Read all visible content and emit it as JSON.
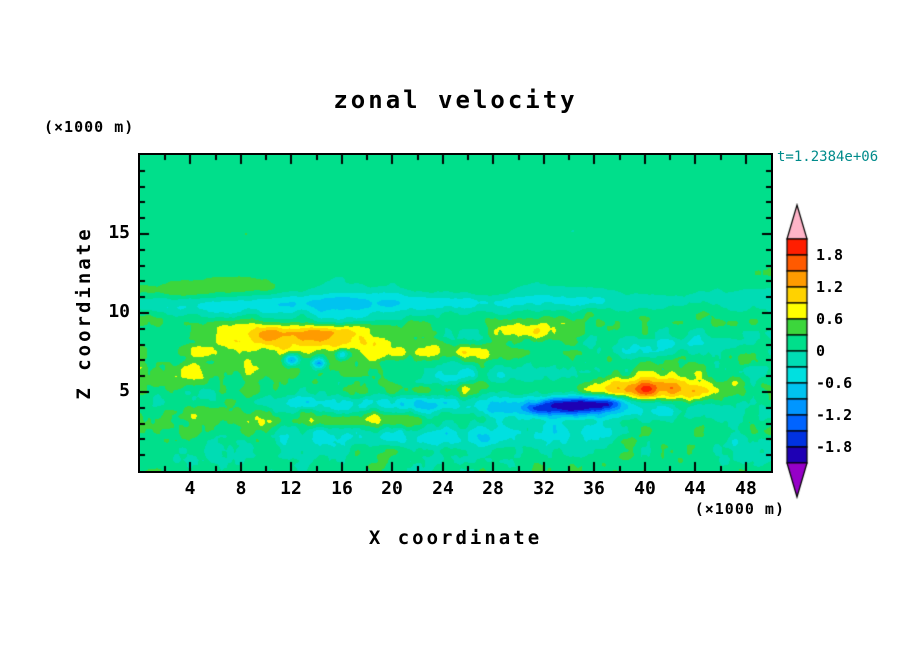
{
  "chart_data": {
    "type": "heatmap",
    "title": "zonal velocity",
    "time_annotation": "t=1.2384e+06",
    "time_annotation_color": "#008b8b",
    "xlabel": "X coordinate",
    "ylabel": "Z coordinate",
    "x_unit": "(×1000 m)",
    "y_unit": "(×1000 m)",
    "xlim": [
      0,
      50
    ],
    "ylim": [
      0,
      20
    ],
    "x_major_ticks": [
      4,
      8,
      12,
      16,
      20,
      24,
      28,
      32,
      36,
      40,
      44,
      48
    ],
    "x_minor_step": 2,
    "y_major_ticks": [
      5,
      10,
      15
    ],
    "y_minor_step": 1,
    "contour_interval": 0.3,
    "colorbar": {
      "max": 2.1,
      "min": -2.1,
      "labels": [
        "1.8",
        "1.2",
        "0.6",
        "0",
        "-0.6",
        "-1.2",
        "-1.8"
      ],
      "label_values": [
        1.8,
        1.2,
        0.6,
        0,
        -0.6,
        -1.2,
        -1.8
      ],
      "colors_top_to_bottom": [
        "#ff1e00",
        "#ff5a00",
        "#ff9b00",
        "#ffd200",
        "#ffff00",
        "#3cd63c",
        "#00df8b",
        "#00dcb4",
        "#00e0e0",
        "#00c3f0",
        "#0096ff",
        "#0064ff",
        "#0032e1",
        "#1e00b4"
      ],
      "over_arrow_color": "#ffb4c8",
      "under_arrow_color": "#9600c8"
    },
    "field_model": {
      "description": "Filled-contour zonal velocity field: background near 0-0.3 (spring green); turbulent layer below z=9.5 with yellow/orange positive streaks and cyan/blue negative streaks; cyan shear band near z=10.5 strongest at left; strong positive orange streak near x=40,z=5 above dark navy negative cores near z=4.2; small deep-blue specks near x=12-16,z=7; calm mottled green above z=12.",
      "base": 0.15,
      "seed": 7,
      "clamp": 2.05,
      "blobs": [
        [
          10,
          10.55,
          11,
          0.55,
          -0.75
        ],
        [
          32,
          10.7,
          14,
          0.45,
          -0.32
        ],
        [
          12,
          8.7,
          6,
          0.8,
          0.8
        ],
        [
          10.5,
          8.55,
          2.5,
          0.45,
          0.45
        ],
        [
          40,
          5.15,
          4.5,
          0.65,
          1.15
        ],
        [
          40.5,
          5.1,
          1.5,
          0.3,
          0.4
        ],
        [
          36,
          4.2,
          5,
          0.55,
          -0.85
        ],
        [
          34.3,
          4.15,
          1.4,
          0.4,
          -1.35
        ],
        [
          36.8,
          4.3,
          0.9,
          0.3,
          -1.05
        ],
        [
          31.5,
          3.9,
          0.8,
          0.3,
          -0.85
        ],
        [
          12,
          7.05,
          0.45,
          0.3,
          -1.5
        ],
        [
          14.2,
          6.8,
          0.4,
          0.28,
          -1.3
        ],
        [
          16,
          7.35,
          0.4,
          0.28,
          -1.15
        ],
        [
          19,
          4.35,
          9,
          0.5,
          -0.7
        ],
        [
          25,
          2.25,
          13,
          0.5,
          -0.42
        ],
        [
          10,
          6.3,
          5,
          0.38,
          0.5
        ],
        [
          17,
          3.15,
          6,
          0.35,
          0.55
        ],
        [
          24,
          5.05,
          5.5,
          0.4,
          0.5
        ],
        [
          24,
          7.5,
          4,
          0.35,
          0.45
        ],
        [
          30,
          8.8,
          2.5,
          0.4,
          0.5
        ],
        [
          6,
          11.4,
          4,
          0.5,
          0.4
        ],
        [
          43,
          7.8,
          6,
          0.5,
          -0.38
        ],
        [
          29,
          6.1,
          4,
          0.3,
          -0.4
        ],
        [
          16,
          9.6,
          4,
          0.35,
          -0.45
        ]
      ],
      "noise_streak_octaves": [
        [
          0.12,
          0.8,
          1
        ],
        [
          0.25,
          1.6,
          0.5
        ],
        [
          0.5,
          3.2,
          0.25
        ]
      ],
      "noise_speckle_octaves": [
        [
          0.7,
          0.8,
          1
        ],
        [
          1.4,
          1.6,
          0.55
        ],
        [
          2.8,
          3.2,
          0.3
        ]
      ],
      "streak_amp_profile": [
        [
          0,
          0.3
        ],
        [
          2.8,
          0.38
        ],
        [
          6,
          0.5
        ],
        [
          9,
          0.45
        ],
        [
          10.5,
          0.33
        ],
        [
          12.5,
          0.2
        ],
        [
          20,
          0.15
        ]
      ],
      "speckle_amp_profile": [
        [
          0,
          0.42
        ],
        [
          3,
          0.5
        ],
        [
          6,
          0.52
        ],
        [
          9,
          0.4
        ],
        [
          10.5,
          0.18
        ],
        [
          12.5,
          0.08
        ],
        [
          20,
          0.06
        ]
      ]
    }
  }
}
